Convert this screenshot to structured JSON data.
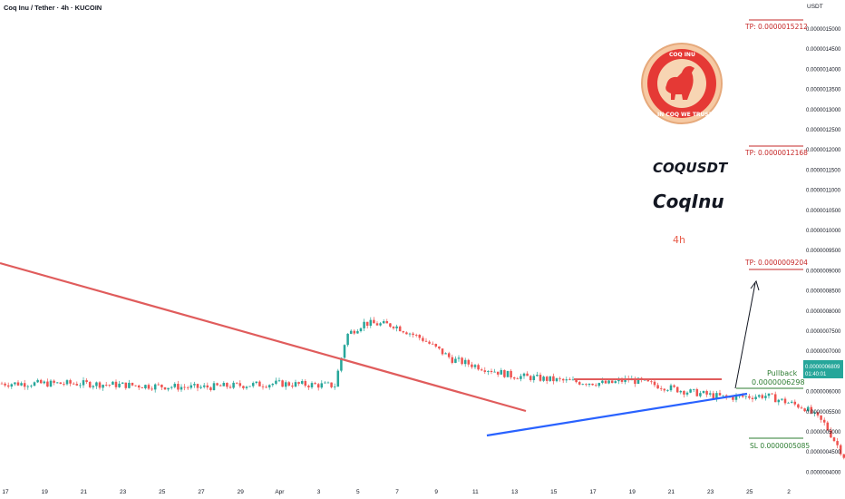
{
  "header": {
    "title": "Coq Inu / Tether · 4h · KUCOIN",
    "currency": "USDT"
  },
  "overlay": {
    "symbol": "COQUSDT",
    "name": "CoqInu",
    "timeframe": "4h",
    "logo_top": "COQ INU",
    "logo_bottom": "IN COQ WE TRUST"
  },
  "colors": {
    "up": "#26a69a",
    "down": "#ef5350",
    "resistance": "#e05c5c",
    "support": "#2962ff",
    "target": "#c62828",
    "pullback": "#2e7d32"
  },
  "price_badge": {
    "price": "0.0000006809",
    "countdown": "01:40:01"
  },
  "levels": [
    {
      "kind": "tp",
      "label": "TP: 0.0000015212",
      "value": 1.5212e-06
    },
    {
      "kind": "tp",
      "label": "TP: 0.0000012168",
      "value": 1.2168e-06
    },
    {
      "kind": "tp",
      "label": "TP: 0.0000009204",
      "value": 9.204e-07
    },
    {
      "kind": "pullback",
      "label": "Pullback",
      "value_label": "0.0000006298",
      "value": 6.298e-07
    },
    {
      "kind": "sl",
      "label": "SL 0.0000005085",
      "value": 5.085e-07
    }
  ],
  "chart_data": {
    "type": "candlestick",
    "title": "Coq Inu / Tether · 4h · KUCOIN",
    "ylim": [
      4e-07,
      1.5212e-06
    ],
    "yticks": [
      "0.0000015000",
      "0.0000014500",
      "0.0000014000",
      "0.0000013500",
      "0.0000013000",
      "0.0000012500",
      "0.0000012000",
      "0.0000011500",
      "0.0000011000",
      "0.0000010500",
      "0.0000010000",
      "0.0000009500",
      "0.0000009000",
      "0.0000008500",
      "0.0000008000",
      "0.0000007500",
      "0.0000007000",
      "0.0000006500",
      "0.0000006000",
      "0.0000005500",
      "0.0000005000",
      "0.0000004500",
      "0.0000004000"
    ],
    "xticks": [
      "17",
      "19",
      "21",
      "23",
      "25",
      "27",
      "29",
      "Apr",
      "3",
      "5",
      "7",
      "9",
      "11",
      "13",
      "15",
      "17",
      "19",
      "21",
      "23",
      "25",
      "2"
    ],
    "trend_resistance": {
      "from": [
        "Mar 16",
        8.4e-07
      ],
      "to": [
        "Apr 12",
        5.8e-07
      ]
    },
    "trend_support": {
      "from": [
        "Apr 10",
        5.2e-07
      ],
      "to": [
        "Apr 24",
        6.1e-07
      ]
    },
    "breakout_line": 6.6e-07,
    "close": 6.809e-07,
    "path": [
      [
        0,
        6.2e-07
      ],
      [
        4,
        6.2e-07
      ],
      [
        10,
        6.1e-07
      ],
      [
        14,
        6.2e-07
      ],
      [
        17,
        6.15e-07
      ],
      [
        17.6,
        7.4e-07
      ],
      [
        18.5,
        7.7e-07
      ],
      [
        20,
        7.65e-07
      ],
      [
        21.5,
        7.3e-07
      ],
      [
        23,
        6.8e-07
      ],
      [
        26,
        6.4e-07
      ],
      [
        29,
        6.25e-07
      ],
      [
        31,
        6.2e-07
      ],
      [
        32,
        6.3e-07
      ],
      [
        35,
        6e-07
      ],
      [
        37,
        5.85e-07
      ],
      [
        39,
        5.9e-07
      ],
      [
        41,
        5.6e-07
      ],
      [
        42,
        5.2e-07
      ],
      [
        43,
        4.4e-07
      ],
      [
        44,
        4.3e-07
      ],
      [
        45,
        4.9e-07
      ],
      [
        46,
        4.7e-07
      ],
      [
        47,
        4.35e-07
      ],
      [
        48,
        4.5e-07
      ],
      [
        49,
        5.5e-07
      ],
      [
        50,
        6.15e-07
      ],
      [
        51,
        5.7e-07
      ],
      [
        52,
        5.5e-07
      ],
      [
        53,
        5.55e-07
      ],
      [
        54,
        5.7e-07
      ],
      [
        55,
        5.8e-07
      ],
      [
        56,
        6.3e-07
      ],
      [
        57,
        6.1e-07
      ],
      [
        58,
        6.2e-07
      ],
      [
        60,
        6.25e-07
      ],
      [
        61,
        6.4e-07
      ],
      [
        62,
        6.45e-07
      ],
      [
        63,
        6.3e-07
      ],
      [
        64,
        6.2e-07
      ],
      [
        66,
        6.25e-07
      ],
      [
        68,
        6.2e-07
      ],
      [
        70,
        6.1e-07
      ],
      [
        72,
        6.15e-07
      ],
      [
        74,
        6.2e-07
      ],
      [
        75,
        6.4e-07
      ],
      [
        76,
        6.3e-07
      ],
      [
        77,
        6.5e-07
      ],
      [
        77.5,
        6.809e-07
      ]
    ]
  }
}
